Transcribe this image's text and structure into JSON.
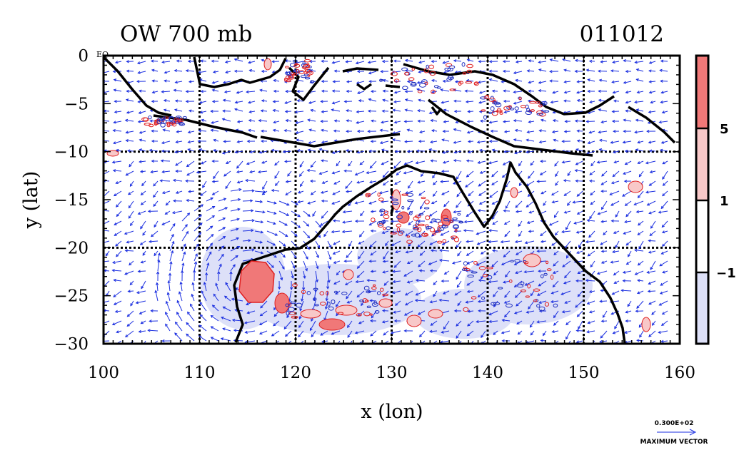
{
  "map": {
    "title_left": "OW 700 mb",
    "title_right": "011012",
    "xlabel": "x (lon)",
    "ylabel": "y (lat)",
    "equator_label": "EQ",
    "lon_range": [
      100,
      160
    ],
    "lat_range": [
      -30,
      0
    ],
    "x_ticks": [
      "100",
      "110",
      "120",
      "130",
      "140",
      "150",
      "160"
    ],
    "y_ticks": [
      "0",
      "−5",
      "−10",
      "−15",
      "−20",
      "−25",
      "−30"
    ],
    "grid_lons": [
      110,
      120,
      130,
      140,
      150
    ],
    "grid_lats": [
      -10,
      -20
    ]
  },
  "colorbar": {
    "labels": [
      "5",
      "1",
      "−1"
    ],
    "levels": [
      5,
      1,
      -1
    ],
    "colors": {
      "above_5": "#f07878",
      "from_1_to_5": "#f8c8c8",
      "from_-1_to_1": "#ffffff",
      "below_-1": "#dde0f8"
    }
  },
  "vector_key": {
    "value": "0.300E+02",
    "label": "MAXIMUM VECTOR"
  },
  "colors": {
    "coastline": "#000000",
    "vectors": "#1a2ee0",
    "positive_contour": "#e02020",
    "negative_contour": "#2030c0"
  }
}
